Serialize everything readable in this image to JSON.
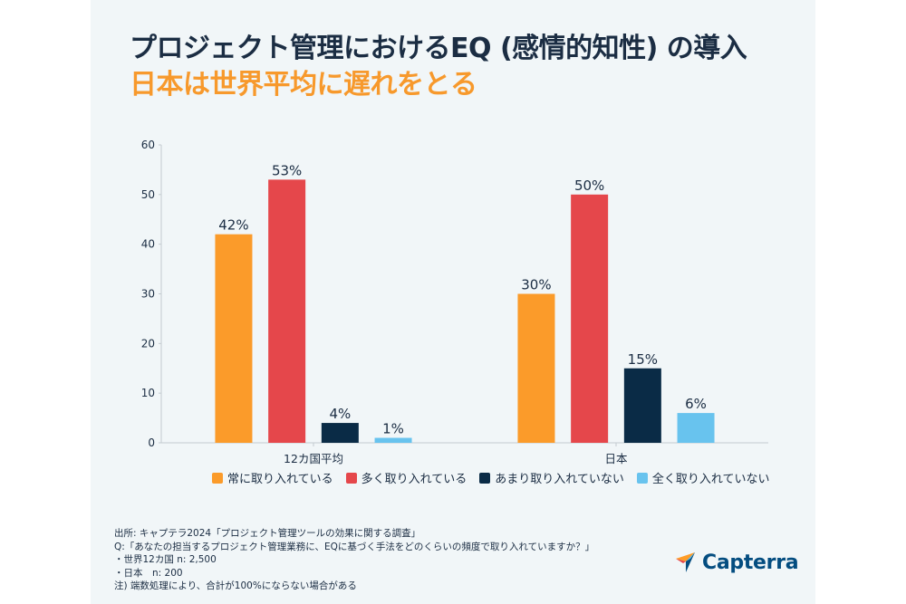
{
  "title": {
    "line1": "プロジェクト管理におけるEQ (感情的知性) の導入",
    "line2": "日本は世界平均に遅れをとる"
  },
  "colors": {
    "title_dark": "#1b2d43",
    "title_accent": "#f7992c",
    "background": "#f1f6f8"
  },
  "chart_data": {
    "type": "bar",
    "title": "プロジェクト管理におけるEQ (感情的知性) の導入",
    "subtitle": "日本は世界平均に遅れをとる",
    "xlabel": "",
    "ylabel": "",
    "ylim": [
      0,
      60
    ],
    "yticks": [
      "0",
      "10",
      "20",
      "30",
      "40",
      "50",
      "60"
    ],
    "categories": [
      "12カ国平均",
      "日本"
    ],
    "grid": false,
    "legend_position": "bottom",
    "series": [
      {
        "name": "常に取り入れている",
        "color": "#fb9b2a",
        "values": [
          42,
          30
        ],
        "labels": [
          "42%",
          "30%"
        ]
      },
      {
        "name": "多く取り入れている",
        "color": "#e5474b",
        "values": [
          53,
          50
        ],
        "labels": [
          "53%",
          "50%"
        ]
      },
      {
        "name": "あまり取り入れていない",
        "color": "#0a2b46",
        "values": [
          4,
          15
        ],
        "labels": [
          "4%",
          "15%"
        ]
      },
      {
        "name": "全く取り入れていない",
        "color": "#68c3ee",
        "values": [
          1,
          6
        ],
        "labels": [
          "1%",
          "6%"
        ]
      }
    ]
  },
  "notes": [
    "出所: キャプテラ2024「プロジェクト管理ツールの効果に関する調査」",
    "Q:「あなたの担当するプロジェクト管理業務に、EQに基づく手法をどのくらいの頻度で取り入れていますか？」",
    "・世界12カ国 n: 2,500",
    "・日本　n: 200",
    "注)  端数処理により、合計が100%にならない場合がある"
  ],
  "logo": {
    "text": "Capterra",
    "icon": "capterra-arrow-icon"
  }
}
